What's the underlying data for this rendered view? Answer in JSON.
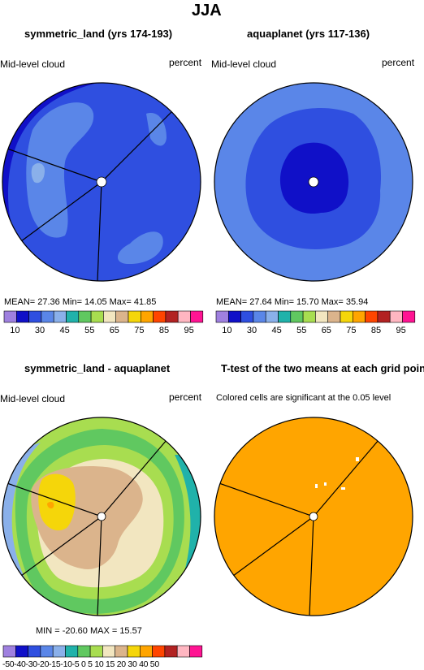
{
  "figure": {
    "title": "JJA",
    "panels": [
      {
        "title": "symmetric_land (yrs 174-193)",
        "left_label": "Mid-level cloud",
        "right_label": "percent",
        "stats": "MEAN=  27.36   Min=  14.05   Max=  41.85"
      },
      {
        "title": "aquaplanet (yrs 117-136)",
        "left_label": "Mid-level cloud",
        "right_label": "percent",
        "stats": "MEAN=  27.64   Min=  15.70   Max=  35.94"
      },
      {
        "title": "symmetric_land - aquaplanet",
        "left_label": "Mid-level cloud",
        "right_label": "percent",
        "stats": "MIN = -20.60  MAX =  15.57"
      },
      {
        "title": "T-test of the two means at each grid point",
        "subtitle": "Colored cells are significant at the 0.05 level"
      }
    ],
    "colorbar_top": {
      "colors": [
        "#9f80df",
        "#1010c8",
        "#2f4fe0",
        "#5a86e8",
        "#8ab0ea",
        "#20b2aa",
        "#60c860",
        "#a8dd50",
        "#f2e6c0",
        "#dbb48c",
        "#f5d60a",
        "#ffa500",
        "#ff4500",
        "#b22222",
        "#ffb6c1",
        "#ff1493"
      ],
      "labels": [
        "10",
        "30",
        "45",
        "55",
        "65",
        "75",
        "85",
        "95"
      ]
    },
    "colorbar_diff": {
      "colors": [
        "#9f80df",
        "#1010c8",
        "#2f4fe0",
        "#5a86e8",
        "#8ab0ea",
        "#20b2aa",
        "#60c860",
        "#a8dd50",
        "#f2e6c0",
        "#dbb48c",
        "#f5d60a",
        "#ffa500",
        "#ff4500",
        "#b22222",
        "#ffb6c1",
        "#ff1493"
      ],
      "labels_text": "-50-40-30-20-15-10-5  0   5  10 15 20 30 40 50"
    }
  }
}
